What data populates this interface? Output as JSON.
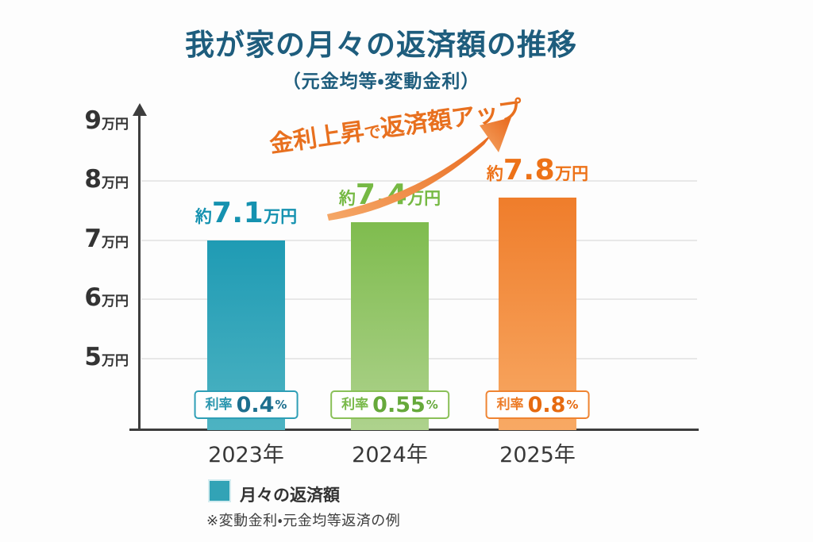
{
  "title": "我が家の月々の返済額の推移",
  "subtitle": "（元金均等・変動金利）",
  "annotation": {
    "color": "#e8701f",
    "segments": [
      {
        "text": "金利上昇"
      },
      {
        "text": "で"
      },
      {
        "text": "返済額"
      },
      {
        "text": "アップ"
      }
    ]
  },
  "chart_data": {
    "type": "bar",
    "title": "我が家の月々の返済額の推移（元金均等・変動金利）",
    "categories": [
      "2023年",
      "2024年",
      "2025年"
    ],
    "values": [
      7.1,
      7.4,
      7.8
    ],
    "unit": "万円",
    "ylim": [
      4,
      9
    ],
    "grid": true,
    "y_ticks": [
      {
        "num": "9",
        "unit": "万円",
        "gridline": false
      },
      {
        "num": "8",
        "unit": "万円",
        "gridline": true
      },
      {
        "num": "7",
        "unit": "万円",
        "gridline": true
      },
      {
        "num": "6",
        "unit": "万円",
        "gridline": true
      },
      {
        "num": "5",
        "unit": "万円",
        "gridline": true
      }
    ],
    "value_labels": [
      {
        "prefix": "約",
        "value": "7.1",
        "suffix": "万円"
      },
      {
        "prefix": "約",
        "value": "7.4",
        "suffix": "万円"
      },
      {
        "prefix": "約",
        "value": "7.8",
        "suffix": "万円"
      }
    ],
    "rate_labels": [
      {
        "label": "利率",
        "value": "0.4",
        "suffix": "%"
      },
      {
        "label": "利率",
        "value": "0.55",
        "suffix": "%"
      },
      {
        "label": "利率",
        "value": "0.8",
        "suffix": "%"
      }
    ],
    "bar_colors": [
      {
        "top": "#1f9bb4",
        "bottom": "#4db3c2",
        "label": "#1592b0",
        "badge_border": "#2f9fb6",
        "badge_label": "#2a96ae",
        "badge_value": "#1d6f8e"
      },
      {
        "top": "#7fbc4e",
        "bottom": "#aed28d",
        "label": "#76b944",
        "badge_border": "#8ac058",
        "badge_label": "#79b94a",
        "badge_value": "#66a93b"
      },
      {
        "top": "#ef7d2b",
        "bottom": "#f8a964",
        "label": "#ed7218",
        "badge_border": "#ef8432",
        "badge_label": "#ec7b26",
        "badge_value": "#e66a10"
      }
    ],
    "arrow_gradient": {
      "from": "#f5a868",
      "to": "#e8681c"
    },
    "legend": {
      "swatch_color": "#32a3b6",
      "label": "月々の返済額"
    },
    "note": "※変動金利・元金均等返済の例"
  }
}
